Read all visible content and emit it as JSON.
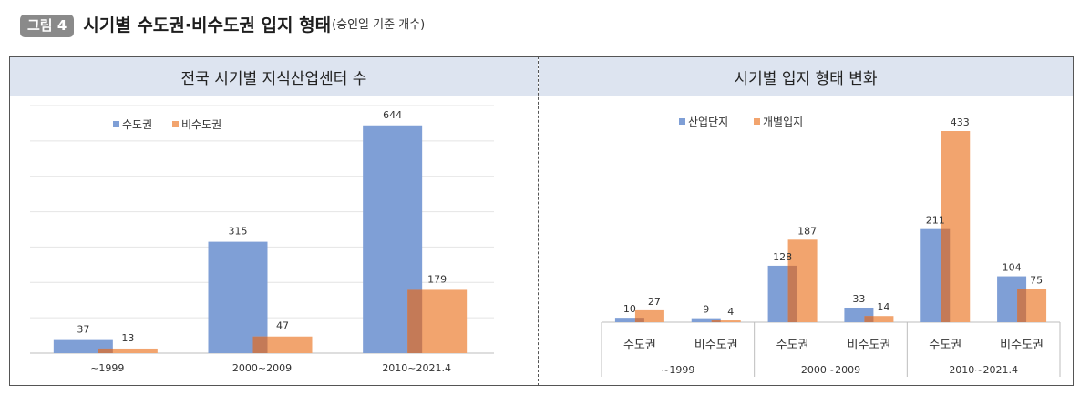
{
  "figure": {
    "badge": "그림 4",
    "title": "시기별 수도권·비수도권 입지 형태",
    "subtitle": "(승인일 기준 개수)"
  },
  "colors": {
    "blue": "#7f9fd6",
    "orange": "#f2a46e",
    "overlap": "#c47a57",
    "panel_header": "#dde4f0"
  },
  "chart_data": [
    {
      "type": "bar",
      "title": "전국 시기별 지식산업센터 수",
      "categories": [
        "~1999",
        "2000~2009",
        "2010~2021.4"
      ],
      "series": [
        {
          "name": "수도권",
          "values": [
            37,
            315,
            644
          ]
        },
        {
          "name": "비수도권",
          "values": [
            13,
            47,
            179
          ]
        }
      ],
      "ylim": [
        0,
        700
      ],
      "grid": true,
      "legend": "top-left"
    },
    {
      "type": "bar",
      "title": "시기별 입지 형태 변화",
      "categories": [
        "수도권",
        "비수도권",
        "수도권",
        "비수도권",
        "수도권",
        "비수도권"
      ],
      "groups": [
        "~1999",
        "2000~2009",
        "2010~2021.4"
      ],
      "series": [
        {
          "name": "산업단지",
          "values": [
            10,
            9,
            128,
            33,
            211,
            104
          ]
        },
        {
          "name": "개별입지",
          "values": [
            27,
            4,
            187,
            14,
            433,
            75
          ]
        }
      ],
      "ylim": [
        0,
        480
      ],
      "grid": false,
      "legend": "top-left"
    }
  ]
}
